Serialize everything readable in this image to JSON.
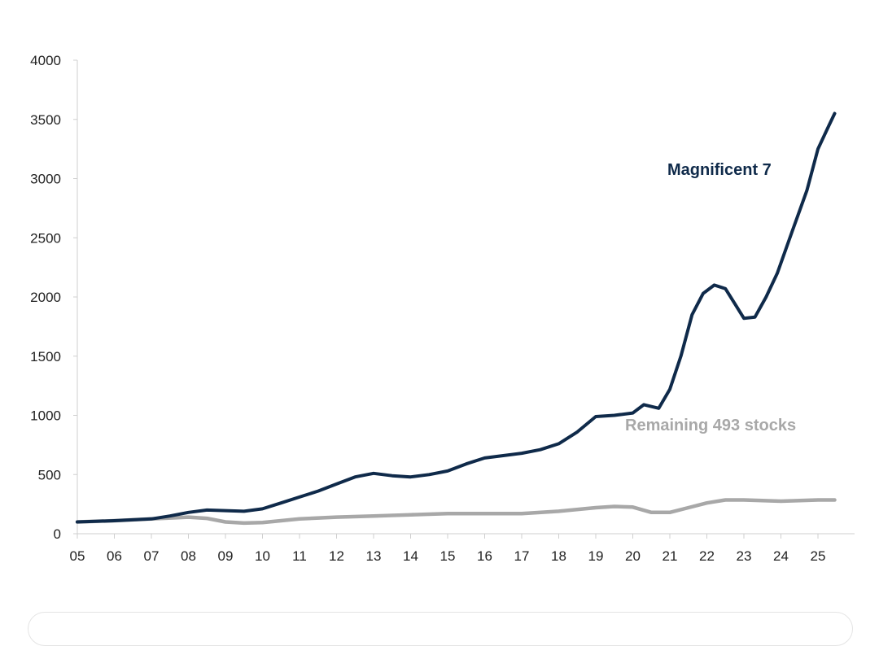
{
  "chart_data": {
    "type": "line",
    "title": "",
    "xlabel": "",
    "ylabel": "",
    "xlim": [
      2005,
      2026
    ],
    "ylim": [
      0,
      4000
    ],
    "grid": false,
    "x_ticks": [
      {
        "value": 2005,
        "label": "05"
      },
      {
        "value": 2006,
        "label": "06"
      },
      {
        "value": 2007,
        "label": "07"
      },
      {
        "value": 2008,
        "label": "08"
      },
      {
        "value": 2009,
        "label": "09"
      },
      {
        "value": 2010,
        "label": "10"
      },
      {
        "value": 2011,
        "label": "11"
      },
      {
        "value": 2012,
        "label": "12"
      },
      {
        "value": 2013,
        "label": "13"
      },
      {
        "value": 2014,
        "label": "14"
      },
      {
        "value": 2015,
        "label": "15"
      },
      {
        "value": 2016,
        "label": "16"
      },
      {
        "value": 2017,
        "label": "17"
      },
      {
        "value": 2018,
        "label": "18"
      },
      {
        "value": 2019,
        "label": "19"
      },
      {
        "value": 2020,
        "label": "20"
      },
      {
        "value": 2021,
        "label": "21"
      },
      {
        "value": 2022,
        "label": "22"
      },
      {
        "value": 2023,
        "label": "23"
      },
      {
        "value": 2024,
        "label": "24"
      },
      {
        "value": 2025,
        "label": "25"
      }
    ],
    "y_ticks": [
      {
        "value": 0,
        "label": "0"
      },
      {
        "value": 500,
        "label": "500"
      },
      {
        "value": 1000,
        "label": "1000"
      },
      {
        "value": 1500,
        "label": "1500"
      },
      {
        "value": 2000,
        "label": "2000"
      },
      {
        "value": 2500,
        "label": "2500"
      },
      {
        "value": 3000,
        "label": "3000"
      },
      {
        "value": 3500,
        "label": "3500"
      },
      {
        "value": 4000,
        "label": "4000"
      }
    ],
    "series": [
      {
        "name": "Magnificent 7",
        "color": "#0f2a4a",
        "x": [
          2005,
          2006,
          2007,
          2007.5,
          2008,
          2008.5,
          2009,
          2009.5,
          2010,
          2010.5,
          2011,
          2011.5,
          2012,
          2012.5,
          2013,
          2013.5,
          2014,
          2014.5,
          2015,
          2015.5,
          2016,
          2016.5,
          2017,
          2017.5,
          2018,
          2018.5,
          2019,
          2019.5,
          2020,
          2020.3,
          2020.7,
          2021,
          2021.3,
          2021.6,
          2021.9,
          2022.2,
          2022.5,
          2022.8,
          2023.0,
          2023.3,
          2023.6,
          2023.9,
          2024.3,
          2024.7,
          2025.0,
          2025.3,
          2025.45
        ],
        "values": [
          100,
          110,
          125,
          150,
          180,
          200,
          195,
          190,
          210,
          260,
          310,
          360,
          420,
          480,
          510,
          490,
          480,
          500,
          530,
          590,
          640,
          660,
          680,
          710,
          760,
          860,
          990,
          1000,
          1020,
          1090,
          1060,
          1220,
          1500,
          1850,
          2030,
          2100,
          2070,
          1920,
          1820,
          1830,
          2000,
          2200,
          2550,
          2900,
          3250,
          3450,
          3550
        ]
      },
      {
        "name": "Remaining 493 stocks",
        "color": "#a8a8a8",
        "x": [
          2005,
          2006,
          2007,
          2008,
          2008.5,
          2009,
          2009.5,
          2010,
          2010.5,
          2011,
          2012,
          2013,
          2014,
          2015,
          2016,
          2017,
          2018,
          2019,
          2019.5,
          2020,
          2020.5,
          2021,
          2021.5,
          2022,
          2022.5,
          2023,
          2023.5,
          2024,
          2024.5,
          2025,
          2025.45
        ],
        "values": [
          100,
          110,
          125,
          140,
          130,
          100,
          90,
          95,
          110,
          125,
          140,
          150,
          160,
          170,
          170,
          170,
          190,
          220,
          230,
          225,
          180,
          180,
          220,
          260,
          285,
          285,
          280,
          275,
          280,
          285,
          285
        ]
      }
    ],
    "annotations": [
      {
        "text": "Magnificent 7",
        "series": "Magnificent 7"
      },
      {
        "text": "Remaining 493 stocks",
        "series": "Remaining 493 stocks"
      }
    ]
  }
}
